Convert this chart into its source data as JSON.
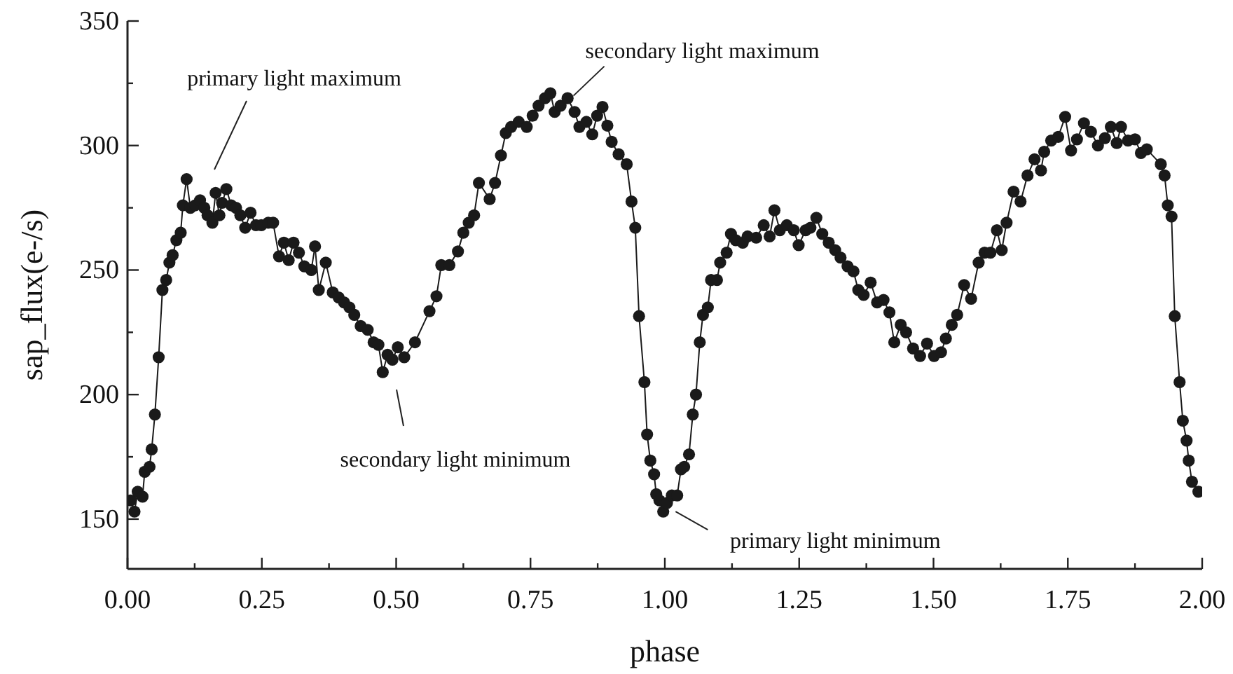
{
  "chart_data": {
    "type": "line",
    "xlabel": "phase",
    "ylabel": "sap_flux(e-/s)",
    "x": [
      0.006,
      0.013,
      0.019,
      0.028,
      0.032,
      0.041,
      0.045,
      0.051,
      0.058,
      0.065,
      0.072,
      0.078,
      0.084,
      0.091,
      0.099,
      0.103,
      0.11,
      0.117,
      0.126,
      0.135,
      0.143,
      0.149,
      0.158,
      0.164,
      0.171,
      0.176,
      0.184,
      0.193,
      0.202,
      0.21,
      0.219,
      0.229,
      0.239,
      0.249,
      0.262,
      0.271,
      0.282,
      0.291,
      0.3,
      0.309,
      0.319,
      0.329,
      0.342,
      0.349,
      0.356,
      0.369,
      0.382,
      0.393,
      0.403,
      0.413,
      0.422,
      0.434,
      0.447,
      0.458,
      0.467,
      0.475,
      0.484,
      0.493,
      0.503,
      0.515,
      0.535,
      0.562,
      0.575,
      0.584,
      0.599,
      0.615,
      0.625,
      0.635,
      0.645,
      0.654,
      0.674,
      0.684,
      0.695,
      0.704,
      0.714,
      0.728,
      0.743,
      0.754,
      0.765,
      0.777,
      0.787,
      0.795,
      0.806,
      0.819,
      0.832,
      0.841,
      0.854,
      0.865,
      0.874,
      0.884,
      0.893,
      0.901,
      0.914,
      0.929,
      0.938,
      0.945,
      0.952,
      0.962,
      0.967,
      0.973,
      0.98,
      0.984,
      0.99,
      0.997,
      1.004,
      1.013,
      1.023,
      1.03,
      1.036,
      1.045,
      1.052,
      1.058,
      1.065,
      1.071,
      1.08,
      1.086,
      1.097,
      1.103,
      1.115,
      1.123,
      1.132,
      1.145,
      1.154,
      1.17,
      1.184,
      1.195,
      1.204,
      1.214,
      1.227,
      1.24,
      1.249,
      1.262,
      1.271,
      1.282,
      1.293,
      1.305,
      1.317,
      1.327,
      1.34,
      1.351,
      1.36,
      1.37,
      1.383,
      1.395,
      1.407,
      1.418,
      1.427,
      1.439,
      1.449,
      1.462,
      1.475,
      1.488,
      1.501,
      1.514,
      1.523,
      1.534,
      1.544,
      1.557,
      1.57,
      1.584,
      1.595,
      1.606,
      1.618,
      1.627,
      1.636,
      1.649,
      1.662,
      1.675,
      1.688,
      1.7,
      1.706,
      1.719,
      1.732,
      1.745,
      1.756,
      1.767,
      1.78,
      1.793,
      1.806,
      1.819,
      1.83,
      1.841,
      1.849,
      1.862,
      1.875,
      1.886,
      1.897,
      1.923,
      1.93,
      1.936,
      1.943,
      1.949,
      1.958,
      1.964,
      1.971,
      1.975,
      1.981,
      1.993
    ],
    "series": [
      {
        "color": "#1a1a1a",
        "values": [
          157.5,
          153,
          161,
          159,
          169,
          171,
          178,
          192,
          215,
          242,
          246,
          253,
          256,
          262,
          265,
          276,
          286.5,
          275,
          276,
          278,
          275,
          272,
          269,
          281,
          272,
          277,
          282.5,
          276,
          275,
          272,
          267,
          273,
          268,
          268,
          269,
          269,
          255.5,
          261,
          254,
          261,
          257,
          251.5,
          250,
          259.5,
          242,
          253,
          241,
          239,
          237,
          235,
          232,
          227.5,
          226,
          221,
          220,
          209,
          216,
          214,
          219,
          215,
          221,
          233.5,
          239.5,
          252,
          252,
          257.5,
          265,
          269,
          272,
          285,
          278.5,
          285,
          296,
          305,
          307.5,
          309.5,
          307.5,
          312,
          316,
          319,
          321,
          313.5,
          316,
          319,
          313.5,
          307.5,
          309.5,
          304.5,
          312,
          315.5,
          308,
          301.5,
          296.5,
          292.5,
          277.5,
          267,
          231.5,
          205,
          184,
          173.5,
          168,
          160,
          157.5,
          153,
          156.5,
          159.5,
          159.5,
          170,
          171,
          176,
          192,
          200,
          221,
          232,
          235,
          246,
          246,
          253,
          257,
          264.5,
          262,
          261,
          263.5,
          263,
          268,
          263.5,
          274,
          266,
          268,
          266,
          260,
          266,
          267,
          271,
          264.5,
          261,
          258,
          255,
          251.5,
          249.5,
          242,
          240,
          245,
          237,
          238,
          233,
          221,
          228,
          225,
          218.5,
          215.5,
          220.5,
          215.5,
          217,
          222.5,
          228,
          232,
          244,
          238.5,
          253,
          257,
          257,
          266,
          258,
          269,
          281.5,
          277.5,
          288,
          294.5,
          290,
          297.5,
          302,
          303.5,
          311.5,
          298,
          302.5,
          309,
          305.5,
          300,
          303,
          307.5,
          301,
          307.5,
          302,
          302.5,
          297,
          298.5,
          292.5,
          288,
          276,
          271.5,
          231.5,
          205,
          189.5,
          181.5,
          173.5,
          165,
          161
        ]
      }
    ],
    "xlim": [
      0,
      2
    ],
    "xticks": [
      {
        "value": 0,
        "label": "0.00"
      },
      {
        "value": 0.125,
        "label": null
      },
      {
        "value": 0.25,
        "label": "0.25"
      },
      {
        "value": 0.375,
        "label": null
      },
      {
        "value": 0.5,
        "label": "0.50"
      },
      {
        "value": 0.625,
        "label": null
      },
      {
        "value": 0.75,
        "label": "0.75"
      },
      {
        "value": 0.875,
        "label": null
      },
      {
        "value": 1,
        "label": "1.00"
      },
      {
        "value": 1.125,
        "label": null
      },
      {
        "value": 1.25,
        "label": "1.25"
      },
      {
        "value": 1.375,
        "label": null
      },
      {
        "value": 1.5,
        "label": "1.50"
      },
      {
        "value": 1.625,
        "label": null
      },
      {
        "value": 1.75,
        "label": "1.75"
      },
      {
        "value": 1.875,
        "label": null
      },
      {
        "value": 2,
        "label": "2.00"
      }
    ],
    "ylim": [
      130,
      350
    ],
    "yticks": [
      150,
      {
        "value": 175,
        "label": null
      },
      200,
      {
        "value": 225,
        "label": null
      },
      250,
      {
        "value": 275,
        "label": null
      },
      300,
      {
        "value": 325,
        "label": null
      },
      350
    ],
    "marker": "circle",
    "line_style": "solid",
    "annotations": [
      "primary light maximum",
      {
        "text": "secondary light maximum",
        "x": 0.83,
        "y": 320
      },
      "secondary light minimum",
      {
        "text": "primary light minimum",
        "x": 1.02,
        "y": 153
      }
    ]
  }
}
